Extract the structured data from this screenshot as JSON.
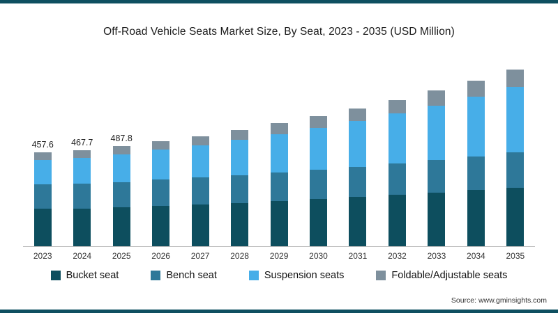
{
  "title": "Off-Road Vehicle Seats Market Size, By Seat, 2023 - 2035 (USD Million)",
  "source": "Source: www.gminsights.com",
  "accent_color": "#0e4f60",
  "chart_data": {
    "type": "bar",
    "stacked": true,
    "title": "Off-Road Vehicle Seats Market Size, By Seat, 2023 - 2035 (USD Million)",
    "xlabel": "",
    "ylabel": "USD Million",
    "ylim": [
      0,
      900
    ],
    "grid": false,
    "legend_position": "bottom",
    "categories": [
      "2023",
      "2024",
      "2025",
      "2026",
      "2027",
      "2028",
      "2029",
      "2030",
      "2031",
      "2032",
      "2033",
      "2034",
      "2035"
    ],
    "series": [
      {
        "name": "Bucket seat",
        "color": "#0d4e5e",
        "values": [
          182,
          185,
          190,
          197,
          204,
          212,
          221,
          230,
          240,
          251,
          262,
          274,
          287
        ]
      },
      {
        "name": "Bench seat",
        "color": "#2e7899",
        "values": [
          120,
          121,
          124,
          128,
          131,
          135,
          139,
          143,
          148,
          153,
          158,
          164,
          170
        ]
      },
      {
        "name": "Suspension seats",
        "color": "#47aee8",
        "values": [
          119,
          124,
          134,
          146,
          158,
          172,
          188,
          205,
          224,
          245,
          268,
          293,
          320
        ]
      },
      {
        "name": "Foldable/Adjustable seats",
        "color": "#7e909d",
        "values": [
          36.6,
          37.7,
          39.8,
          42,
          45,
          48,
          52,
          56,
          61,
          66,
          72,
          78,
          85
        ]
      }
    ],
    "totals": [
      457.6,
      467.7,
      487.8,
      513,
      538,
      567,
      600,
      634,
      673,
      715,
      760,
      809,
      862
    ],
    "value_labels": [
      "457.6",
      "467.7",
      "487.8",
      "",
      "",
      "",
      "",
      "",
      "",
      "",
      "",
      "",
      ""
    ]
  }
}
